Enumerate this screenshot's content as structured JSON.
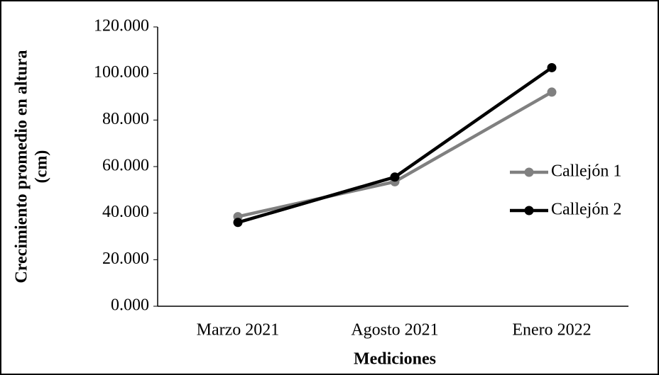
{
  "chart_data": {
    "type": "line",
    "ylabel": [
      "Crecimiento promedio en altura",
      "(cm)"
    ],
    "xlabel": "Mediciones",
    "categories": [
      "Marzo 2021",
      "Agosto 2021",
      "Enero 2022"
    ],
    "series": [
      {
        "name": "Callejón 1",
        "color": "#808080",
        "values": [
          38.5,
          53.5,
          92
        ]
      },
      {
        "name": "Callejón 2",
        "color": "#000000",
        "values": [
          36,
          55.5,
          102.5
        ]
      }
    ],
    "ylim": [
      0,
      120
    ],
    "yticks": [
      {
        "value": 0,
        "label": "0.000"
      },
      {
        "value": 20,
        "label": "20.000"
      },
      {
        "value": 40,
        "label": "40.000"
      },
      {
        "value": 60,
        "label": "60.000"
      },
      {
        "value": 80,
        "label": "80.000"
      },
      {
        "value": 100,
        "label": "100.000"
      },
      {
        "value": 120,
        "label": "120.000"
      }
    ],
    "legend": "right"
  }
}
